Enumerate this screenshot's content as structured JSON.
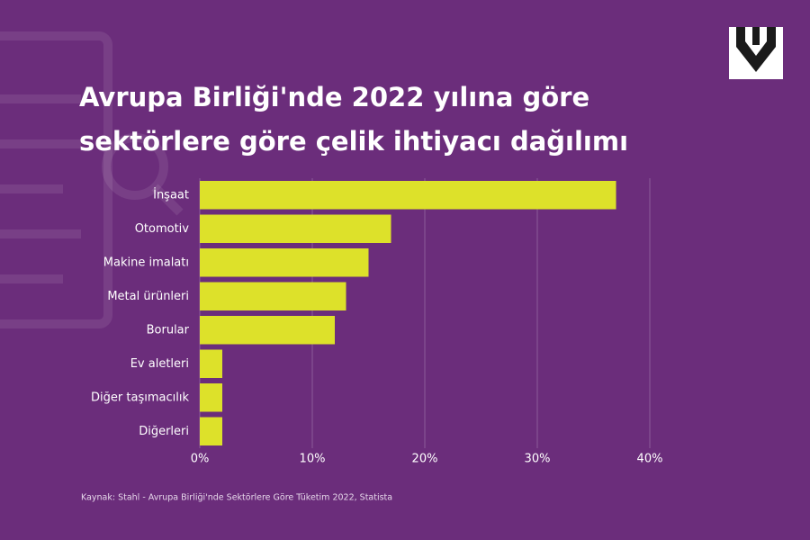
{
  "chart_data": {
    "type": "bar",
    "orientation": "horizontal",
    "title": "Avrupa Birliği'nde 2022 yılına göre sektörlere göre çelik ihtiyacı dağılımı",
    "categories": [
      "İnşaat",
      "Otomotiv",
      "Makine imalatı",
      "Metal ürünleri",
      "Borular",
      "Ev aletleri",
      "Diğer taşımacılık",
      "Diğerleri"
    ],
    "values": [
      37,
      17,
      15,
      13,
      12,
      2,
      2,
      2
    ],
    "color": "#dde12a",
    "xlim": [
      0,
      40
    ],
    "xticks": [
      {
        "value": 0,
        "label": "0%"
      },
      {
        "value": 10,
        "label": "10%"
      },
      {
        "value": 20,
        "label": "20%"
      },
      {
        "value": 30,
        "label": "30%"
      },
      {
        "value": 40,
        "label": "40%"
      }
    ],
    "grid": true,
    "source": "Kaynak: Stahl - Avrupa Birliği'nde Sektörlere Göre Tüketim 2022, Statista"
  }
}
